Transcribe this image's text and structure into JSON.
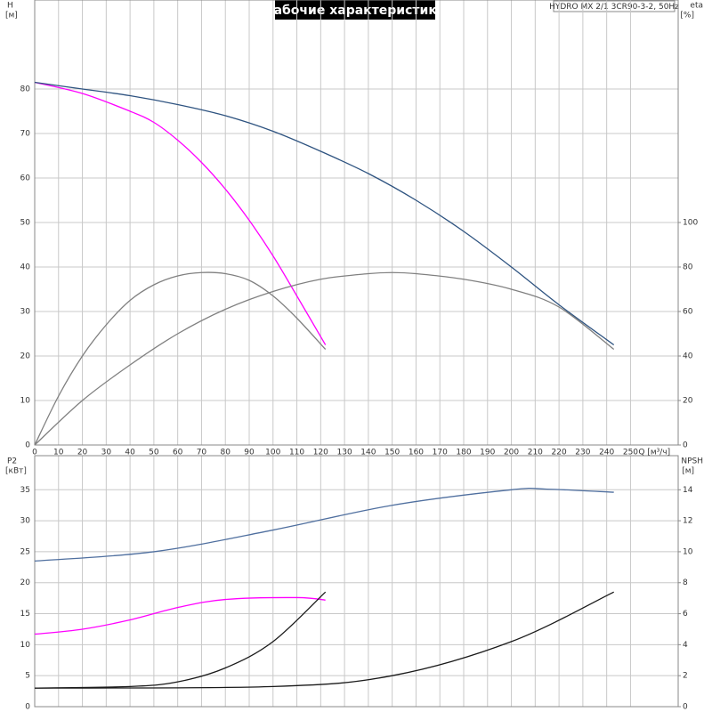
{
  "chart_data": [
    {
      "type": "line",
      "title": "Рабочие характеристики",
      "subtitle": "HYDRO MX 2/1 3CR90-3-2, 50Hz",
      "ylabel": "H",
      "yunit": "[м]",
      "y2label": "eta",
      "y2unit": "[%]",
      "xlabel": "Q [м³/ч]",
      "xlim": [
        0,
        270
      ],
      "xticks": [
        0,
        10,
        20,
        30,
        40,
        50,
        60,
        70,
        80,
        90,
        100,
        110,
        120,
        130,
        140,
        150,
        160,
        170,
        180,
        190,
        200,
        210,
        220,
        230,
        240,
        250
      ],
      "ylim": [
        0,
        100
      ],
      "yticks": [
        0,
        10,
        20,
        30,
        40,
        50,
        60,
        70,
        80
      ],
      "y2lim": [
        0,
        200
      ],
      "y2ticks": [
        0,
        20,
        40,
        60,
        80,
        100
      ],
      "grid": true,
      "series": [
        {
          "color": "#ff00ff",
          "x": [
            0,
            20,
            40,
            50,
            60,
            70,
            80,
            90,
            100,
            110,
            122
          ],
          "values": [
            81.5,
            79,
            75,
            72.5,
            68.5,
            63.5,
            57.5,
            50.5,
            42.5,
            33.5,
            22.5
          ]
        },
        {
          "color": "#2e5380",
          "x": [
            0,
            20,
            40,
            60,
            80,
            100,
            120,
            140,
            160,
            180,
            200,
            220,
            243
          ],
          "values": [
            81.5,
            80,
            78.5,
            76.5,
            74,
            70.5,
            66,
            61,
            55,
            48,
            40,
            31.5,
            22.5
          ]
        },
        {
          "color": "#808080",
          "axis": "y2",
          "x": [
            0,
            10,
            20,
            30,
            40,
            50,
            60,
            70,
            80,
            90,
            100,
            110,
            122
          ],
          "values": [
            0,
            22,
            40,
            54,
            65,
            72,
            76,
            77.5,
            77,
            74,
            67,
            57,
            43
          ]
        },
        {
          "color": "#808080",
          "axis": "y2",
          "x": [
            0,
            20,
            40,
            60,
            80,
            100,
            120,
            140,
            150,
            160,
            180,
            200,
            220,
            243
          ],
          "values": [
            0,
            20,
            36,
            50,
            61,
            69,
            74.5,
            77,
            77.5,
            77,
            74.5,
            70,
            62,
            43
          ]
        }
      ]
    },
    {
      "type": "line",
      "ylabel": "P2",
      "yunit": "[кВт]",
      "y2label": "NPSH",
      "y2unit": "[м]",
      "xlim": [
        0,
        270
      ],
      "ylim": [
        0,
        40.5
      ],
      "yticks": [
        0,
        5,
        10,
        15,
        20,
        25,
        30,
        35
      ],
      "y2lim": [
        0,
        16.2
      ],
      "y2ticks": [
        0,
        2,
        4,
        6,
        8,
        10,
        12,
        14
      ],
      "grid": true,
      "series": [
        {
          "color": "#4f6f9f",
          "x": [
            0,
            50,
            100,
            150,
            200,
            215,
            243
          ],
          "values": [
            23.5,
            25,
            28.5,
            32.5,
            35,
            35.1,
            34.6
          ]
        },
        {
          "color": "#ff00ff",
          "x": [
            0,
            20,
            40,
            60,
            80,
            110,
            122
          ],
          "values": [
            11.7,
            12.5,
            14,
            16,
            17.3,
            17.6,
            17.2
          ]
        },
        {
          "color": "#1a1a1a",
          "axis": "y2",
          "x": [
            0,
            40,
            60,
            80,
            100,
            122
          ],
          "values": [
            1.2,
            1.3,
            1.6,
            2.5,
            4.2,
            7.4
          ]
        },
        {
          "color": "#1a1a1a",
          "axis": "y2",
          "x": [
            0,
            100,
            150,
            200,
            243
          ],
          "values": [
            1.2,
            1.3,
            2,
            4.2,
            7.4
          ]
        }
      ]
    }
  ]
}
